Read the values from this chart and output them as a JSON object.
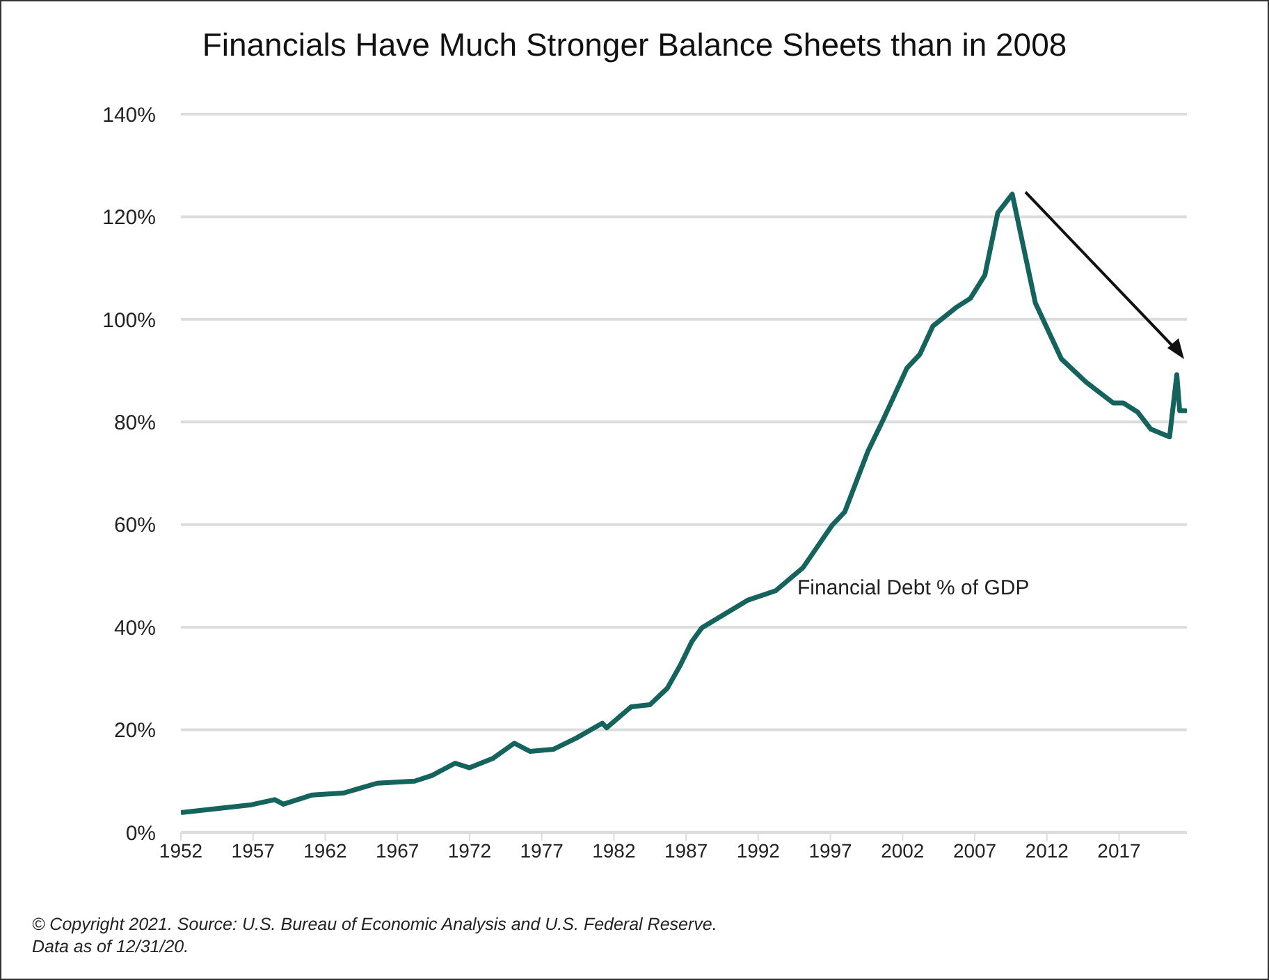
{
  "chart_data": {
    "type": "line",
    "title": "Financials Have Much Stronger Balance Sheets than in 2008",
    "annotations": [
      "© Copyright 2021. Source: U.S. Bureau of Economic Analysis and U.S. Federal Reserve.",
      "Data as of 12/31/20."
    ],
    "x": [
      1952.1,
      1956.9,
      1958.5,
      1959.1,
      1961.1,
      1963.3,
      1965.6,
      1968.2,
      1969.4,
      1971.0,
      1972.0,
      1973.6,
      1975.1,
      1976.2,
      1977.8,
      1979.4,
      1981.2,
      1981.5,
      1983.2,
      1984.5,
      1985.7,
      1986.6,
      1987.4,
      1988.1,
      1991.3,
      1993.2,
      1995.1,
      1997.1,
      1998.0,
      1999.6,
      2000.6,
      2002.3,
      2003.2,
      2004.1,
      2005.7,
      2006.7,
      2007.7,
      2008.6,
      2009.6,
      2011.2,
      2013.0,
      2014.7,
      2016.6,
      2017.3,
      2018.3,
      2019.2,
      2020.5,
      2021.0,
      2021.2,
      2021.6
    ],
    "series": [
      {
        "name": "Financial Debt % of GDP",
        "color": "#14635c",
        "values": [
          3.9,
          5.4,
          6.4,
          5.5,
          7.3,
          7.7,
          9.6,
          10.0,
          11.1,
          13.5,
          12.6,
          14.4,
          17.4,
          15.8,
          16.2,
          18.4,
          21.3,
          20.4,
          24.5,
          24.9,
          28.1,
          32.6,
          37.2,
          39.9,
          45.3,
          47.1,
          51.6,
          59.8,
          62.5,
          74.3,
          80.1,
          90.5,
          93.2,
          98.7,
          102.3,
          104.1,
          108.6,
          120.8,
          124.4,
          103.2,
          92.3,
          87.8,
          83.7,
          83.7,
          81.9,
          78.6,
          77.1,
          89.2,
          82.2,
          82.2
        ]
      }
    ],
    "xlim": [
      1952,
      2021.7
    ],
    "xticks": [
      1952,
      1957,
      1962,
      1967,
      1972,
      1977,
      1982,
      1987,
      1992,
      1997,
      2002,
      2007,
      2012,
      2017
    ],
    "ylim": [
      0,
      140
    ],
    "yticks": [
      {
        "value": 0,
        "label": "0%"
      },
      {
        "value": 20,
        "label": "20%"
      },
      {
        "value": 40,
        "label": "40%"
      },
      {
        "value": 60,
        "label": "60%"
      },
      {
        "value": 80,
        "label": "80%"
      },
      {
        "value": 100,
        "label": "100%"
      },
      {
        "value": 120,
        "label": "120%"
      },
      {
        "value": 140,
        "label": "140%"
      }
    ],
    "grid": "y",
    "legend": false,
    "marker": "none",
    "line_style": "solid"
  }
}
